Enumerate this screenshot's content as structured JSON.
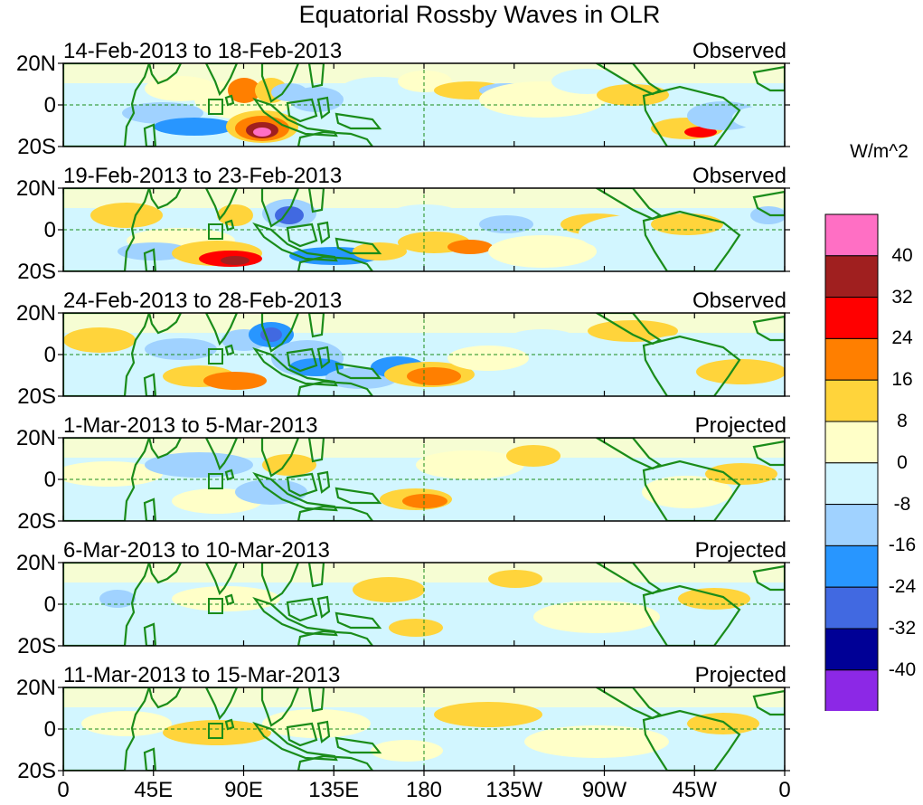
{
  "figure": {
    "title": "Equatorial Rossby Waves in OLR",
    "lat_labels": [
      "20N",
      "0",
      "20S"
    ],
    "lon_labels": [
      "0",
      "45E",
      "90E",
      "135E",
      "180",
      "135W",
      "90W",
      "45W",
      "0"
    ]
  },
  "panels": [
    {
      "period": "14-Feb-2013 to 18-Feb-2013",
      "type": "Observed"
    },
    {
      "period": "19-Feb-2013 to 23-Feb-2013",
      "type": "Observed"
    },
    {
      "period": "24-Feb-2013 to 28-Feb-2013",
      "type": "Observed"
    },
    {
      "period": "1-Mar-2013 to 5-Mar-2013",
      "type": "Projected"
    },
    {
      "period": "6-Mar-2013 to 10-Mar-2013",
      "type": "Projected"
    },
    {
      "period": "11-Mar-2013 to 15-Mar-2013",
      "type": "Projected"
    }
  ],
  "colorbar": {
    "units": "W/m^2",
    "labels": [
      "40",
      "32",
      "24",
      "16",
      "8",
      "0",
      "-8",
      "-16",
      "-24",
      "-32",
      "-40"
    ],
    "colors": [
      "#ff6fc4",
      "#a01f1f",
      "#ff0000",
      "#ff7f00",
      "#ffd43b",
      "#ffffc8",
      "#d2f6ff",
      "#a0d2ff",
      "#2896ff",
      "#4169e1",
      "#000096",
      "#8c28e6"
    ]
  },
  "colors": {
    "coast": "#1a8c1a",
    "neutral_bg": "#ffffff"
  }
}
